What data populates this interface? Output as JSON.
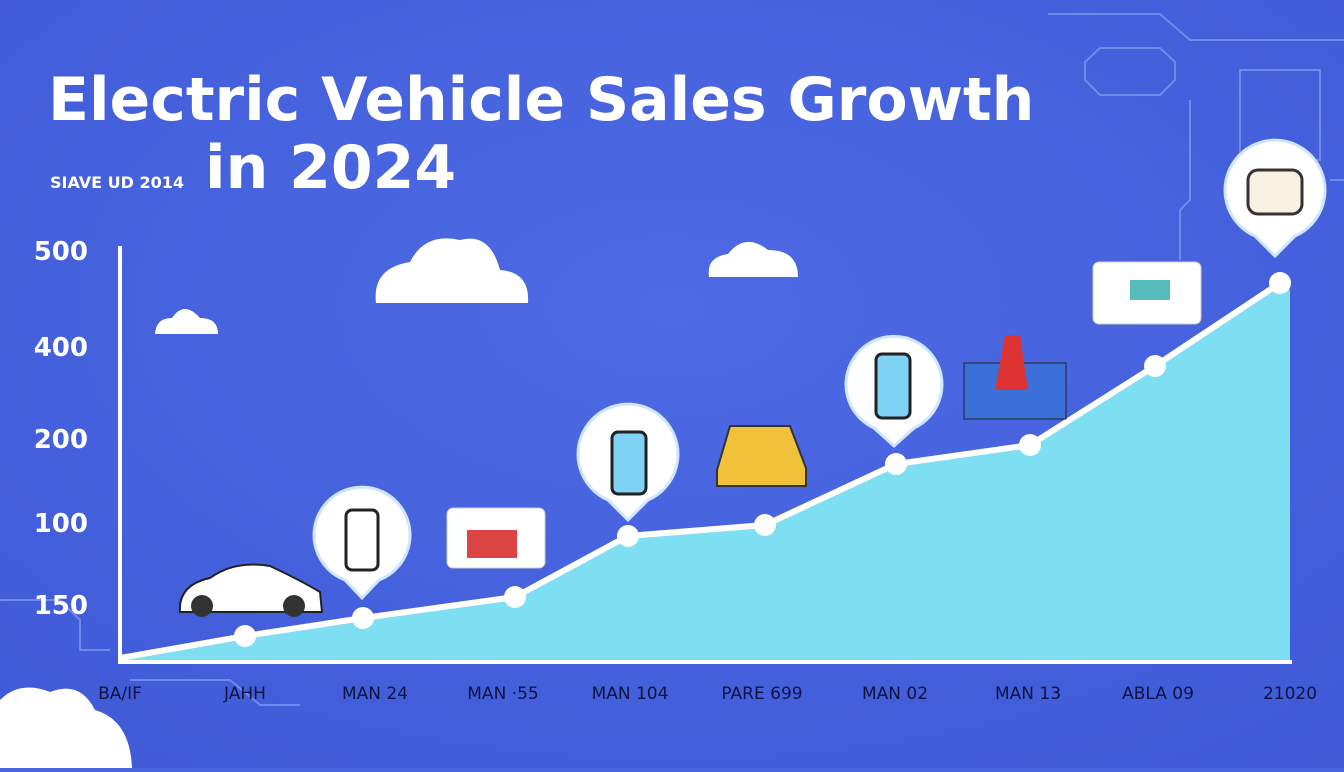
{
  "header": {
    "title": "Electric Vehicle Sales Growth",
    "title_line2": "in 2024",
    "tagline": "SIAVE UD 2014"
  },
  "y_axis_labels": [
    "500",
    "400",
    "200",
    "100",
    "150"
  ],
  "x_axis_labels": [
    "BA/IF",
    "JAHH",
    "MAN 24",
    "MAN ·55",
    "MAN 104",
    "PARE 699",
    "MAN 02",
    "MAN 13",
    "ABLA 09",
    "21020"
  ]
}
